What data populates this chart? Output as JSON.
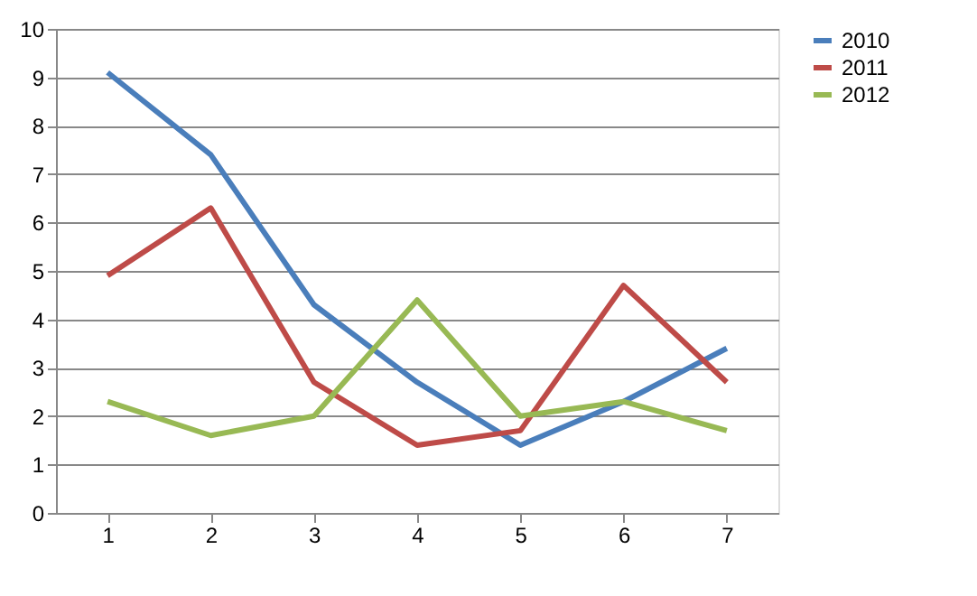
{
  "chart_data": {
    "type": "line",
    "categories": [
      "1",
      "2",
      "3",
      "4",
      "5",
      "6",
      "7"
    ],
    "series": [
      {
        "name": "2010",
        "color": "#4a7ebb",
        "values": [
          9.1,
          7.4,
          4.3,
          2.7,
          1.4,
          2.3,
          3.4
        ]
      },
      {
        "name": "2011",
        "color": "#be4b48",
        "values": [
          4.9,
          6.3,
          2.7,
          1.4,
          1.7,
          4.7,
          2.7
        ]
      },
      {
        "name": "2012",
        "color": "#98b954",
        "values": [
          2.3,
          1.6,
          2.0,
          4.4,
          2.0,
          2.3,
          1.7
        ]
      }
    ],
    "ylim": [
      0,
      10
    ],
    "yticks": [
      0,
      1,
      2,
      3,
      4,
      5,
      6,
      7,
      8,
      9,
      10
    ],
    "grid": "y",
    "legend": "right",
    "marker": "none",
    "line_style": "solid"
  }
}
